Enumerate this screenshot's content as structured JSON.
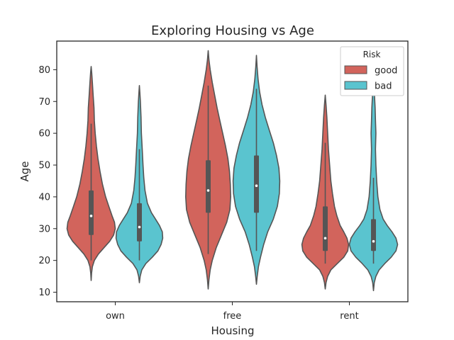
{
  "chart_data": {
    "type": "violin",
    "title": "Exploring Housing vs Age",
    "xlabel": "Housing",
    "ylabel": "Age",
    "ylim": [
      7,
      89
    ],
    "yticks": [
      10,
      20,
      30,
      40,
      50,
      60,
      70,
      80
    ],
    "categories": [
      "own",
      "free",
      "rent"
    ],
    "legend": {
      "title": "Risk",
      "position": "top-right",
      "entries": [
        "good",
        "bad"
      ]
    },
    "series": [
      {
        "name": "good",
        "color": "#d2645c",
        "violins": [
          {
            "category": "own",
            "min": 13.7,
            "max": 81,
            "q1": 28,
            "median": 34,
            "q3": 42,
            "whisker_low": 20,
            "whisker_high": 63,
            "profile": [
              [
                13.7,
                0
              ],
              [
                16,
                0.01
              ],
              [
                18,
                0.03
              ],
              [
                20,
                0.08
              ],
              [
                22,
                0.18
              ],
              [
                24,
                0.32
              ],
              [
                26,
                0.46
              ],
              [
                28,
                0.56
              ],
              [
                30,
                0.6
              ],
              [
                32,
                0.58
              ],
              [
                34,
                0.52
              ],
              [
                37,
                0.44
              ],
              [
                40,
                0.36
              ],
              [
                44,
                0.28
              ],
              [
                48,
                0.22
              ],
              [
                52,
                0.17
              ],
              [
                56,
                0.13
              ],
              [
                60,
                0.1
              ],
              [
                64,
                0.08
              ],
              [
                68,
                0.07
              ],
              [
                72,
                0.05
              ],
              [
                76,
                0.03
              ],
              [
                79,
                0.015
              ],
              [
                81,
                0
              ]
            ]
          },
          {
            "category": "free",
            "min": 11,
            "max": 86,
            "q1": 35,
            "median": 42,
            "q3": 51.5,
            "whisker_low": 22,
            "whisker_high": 75,
            "profile": [
              [
                11,
                0
              ],
              [
                14,
                0.02
              ],
              [
                17,
                0.05
              ],
              [
                20,
                0.1
              ],
              [
                24,
                0.2
              ],
              [
                28,
                0.33
              ],
              [
                32,
                0.46
              ],
              [
                36,
                0.54
              ],
              [
                40,
                0.56
              ],
              [
                44,
                0.55
              ],
              [
                48,
                0.53
              ],
              [
                52,
                0.49
              ],
              [
                56,
                0.43
              ],
              [
                60,
                0.36
              ],
              [
                64,
                0.29
              ],
              [
                68,
                0.22
              ],
              [
                72,
                0.16
              ],
              [
                76,
                0.1
              ],
              [
                80,
                0.05
              ],
              [
                83,
                0.02
              ],
              [
                86,
                0
              ]
            ]
          },
          {
            "category": "rent",
            "min": 11,
            "max": 72,
            "q1": 23,
            "median": 27,
            "q3": 37,
            "whisker_low": 19,
            "whisker_high": 57,
            "profile": [
              [
                11,
                0
              ],
              [
                13,
                0.02
              ],
              [
                15,
                0.06
              ],
              [
                17,
                0.14
              ],
              [
                19,
                0.3
              ],
              [
                21,
                0.46
              ],
              [
                23,
                0.56
              ],
              [
                25,
                0.58
              ],
              [
                27,
                0.54
              ],
              [
                29,
                0.46
              ],
              [
                31,
                0.37
              ],
              [
                34,
                0.29
              ],
              [
                37,
                0.23
              ],
              [
                41,
                0.18
              ],
              [
                45,
                0.14
              ],
              [
                50,
                0.11
              ],
              [
                55,
                0.08
              ],
              [
                60,
                0.06
              ],
              [
                65,
                0.04
              ],
              [
                69,
                0.02
              ],
              [
                72,
                0
              ]
            ]
          }
        ]
      },
      {
        "name": "bad",
        "color": "#5ac4cf",
        "violins": [
          {
            "category": "own",
            "min": 13,
            "max": 75,
            "q1": 26,
            "median": 30.5,
            "q3": 38,
            "whisker_low": 20,
            "whisker_high": 55,
            "profile": [
              [
                13,
                0
              ],
              [
                15,
                0.02
              ],
              [
                17,
                0.06
              ],
              [
                19,
                0.16
              ],
              [
                21,
                0.32
              ],
              [
                23,
                0.46
              ],
              [
                25,
                0.54
              ],
              [
                27,
                0.58
              ],
              [
                29,
                0.57
              ],
              [
                31,
                0.5
              ],
              [
                33,
                0.4
              ],
              [
                35,
                0.3
              ],
              [
                38,
                0.2
              ],
              [
                42,
                0.14
              ],
              [
                46,
                0.11
              ],
              [
                50,
                0.09
              ],
              [
                55,
                0.07
              ],
              [
                60,
                0.05
              ],
              [
                65,
                0.04
              ],
              [
                70,
                0.025
              ],
              [
                73,
                0.01
              ],
              [
                75,
                0
              ]
            ]
          },
          {
            "category": "free",
            "min": 12.5,
            "max": 84.5,
            "q1": 35,
            "median": 43.5,
            "q3": 53,
            "whisker_low": 23,
            "whisker_high": 74,
            "profile": [
              [
                12.5,
                0
              ],
              [
                15,
                0.02
              ],
              [
                18,
                0.05
              ],
              [
                21,
                0.1
              ],
              [
                25,
                0.18
              ],
              [
                29,
                0.28
              ],
              [
                33,
                0.42
              ],
              [
                37,
                0.52
              ],
              [
                41,
                0.57
              ],
              [
                45,
                0.58
              ],
              [
                49,
                0.56
              ],
              [
                53,
                0.5
              ],
              [
                57,
                0.42
              ],
              [
                61,
                0.32
              ],
              [
                65,
                0.22
              ],
              [
                69,
                0.14
              ],
              [
                73,
                0.08
              ],
              [
                77,
                0.04
              ],
              [
                81,
                0.015
              ],
              [
                84.5,
                0
              ]
            ]
          },
          {
            "category": "rent",
            "min": 10.5,
            "max": 77,
            "q1": 23,
            "median": 26,
            "q3": 33,
            "whisker_low": 19,
            "whisker_high": 46,
            "profile": [
              [
                10.5,
                0
              ],
              [
                13,
                0.02
              ],
              [
                15,
                0.06
              ],
              [
                17,
                0.14
              ],
              [
                19,
                0.28
              ],
              [
                21,
                0.44
              ],
              [
                23,
                0.56
              ],
              [
                25,
                0.6
              ],
              [
                27,
                0.56
              ],
              [
                29,
                0.46
              ],
              [
                31,
                0.34
              ],
              [
                33,
                0.24
              ],
              [
                36,
                0.16
              ],
              [
                40,
                0.11
              ],
              [
                45,
                0.08
              ],
              [
                50,
                0.06
              ],
              [
                55,
                0.05
              ],
              [
                60,
                0.06
              ],
              [
                64,
                0.05
              ],
              [
                68,
                0.04
              ],
              [
                72,
                0.025
              ],
              [
                75,
                0.01
              ],
              [
                77,
                0
              ]
            ]
          }
        ]
      }
    ]
  }
}
